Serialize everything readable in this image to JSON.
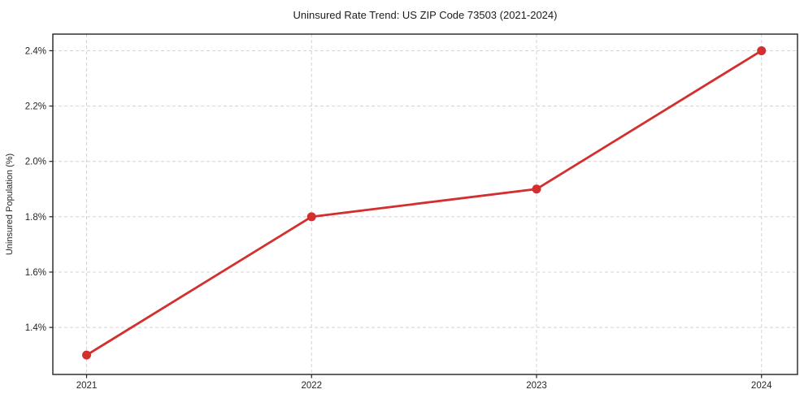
{
  "chart_data": {
    "type": "line",
    "title": "Uninsured Rate Trend: US ZIP Code 73503 (2021-2024)",
    "xlabel": "",
    "ylabel": "Uninsured Population (%)",
    "x": [
      2021,
      2022,
      2023,
      2024
    ],
    "values": [
      1.3,
      1.8,
      1.9,
      2.4
    ],
    "x_ticks": [
      2021,
      2022,
      2023,
      2024
    ],
    "x_tick_labels": [
      "2021",
      "2022",
      "2023",
      "2024"
    ],
    "y_ticks": [
      1.4,
      1.6,
      1.8,
      2.0,
      2.2,
      2.4
    ],
    "y_tick_labels": [
      "1.4%",
      "1.6%",
      "1.8%",
      "2.0%",
      "2.2%",
      "2.4%"
    ],
    "xlim": [
      2020.85,
      2024.16
    ],
    "ylim": [
      1.23,
      2.46
    ],
    "grid": true,
    "grid_style": "dashed",
    "legend": false,
    "colors": {
      "line": "#d32f2f",
      "marker": "#d32f2f",
      "grid": "#d4d4d4",
      "frame": "#222222",
      "text": "#1c1c1c"
    }
  }
}
